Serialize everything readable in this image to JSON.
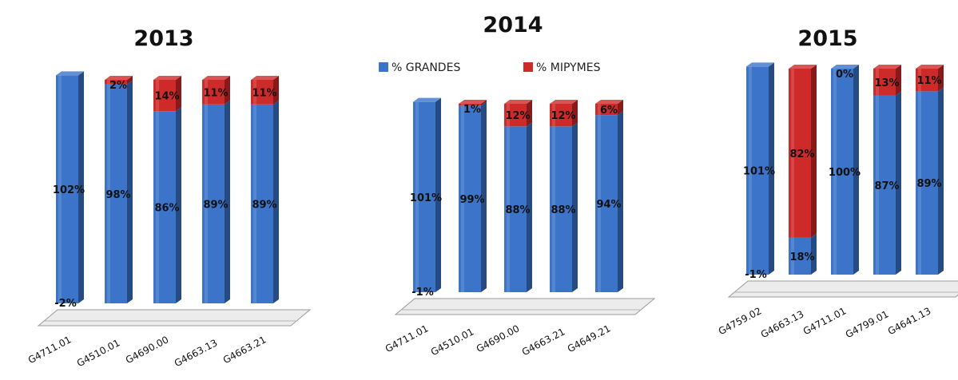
{
  "legend": [
    {
      "label": "% GRANDES",
      "color": "#3b74c9"
    },
    {
      "label": "% MIPYMES",
      "color": "#cf2a2a"
    }
  ],
  "chart_data": [
    {
      "type": "bar",
      "stacked": true,
      "title": "2013",
      "categories": [
        "G4711.01",
        "G4510.01",
        "G4690.00",
        "G4663.13",
        "G4663.21"
      ],
      "series": [
        {
          "name": "% GRANDES",
          "values": [
            102,
            98,
            86,
            89,
            89
          ]
        },
        {
          "name": "% MIPYMES",
          "values": [
            -2,
            2,
            14,
            11,
            11
          ]
        }
      ],
      "labels": [
        {
          "grandes": "102%",
          "mipymes": "-2%"
        },
        {
          "grandes": "98%",
          "mipymes": "2%"
        },
        {
          "grandes": "86%",
          "mipymes": "14%"
        },
        {
          "grandes": "89%",
          "mipymes": "11%"
        },
        {
          "grandes": "89%",
          "mipymes": "11%"
        }
      ]
    },
    {
      "type": "bar",
      "stacked": true,
      "title": "2014",
      "categories": [
        "G4711.01",
        "G4510.01",
        "G4690.00",
        "G4663.21",
        "G4649.21"
      ],
      "series": [
        {
          "name": "% GRANDES",
          "values": [
            101,
            99,
            88,
            88,
            94
          ]
        },
        {
          "name": "% MIPYMES",
          "values": [
            -1,
            1,
            12,
            12,
            6
          ]
        }
      ],
      "labels": [
        {
          "grandes": "101%",
          "mipymes": "-1%"
        },
        {
          "grandes": "99%",
          "mipymes": "1%"
        },
        {
          "grandes": "88%",
          "mipymes": "12%"
        },
        {
          "grandes": "88%",
          "mipymes": "12%"
        },
        {
          "grandes": "94%",
          "mipymes": "6%"
        }
      ]
    },
    {
      "type": "bar",
      "stacked": true,
      "title": "2015",
      "categories": [
        "G4759.02",
        "G4663.13",
        "G4711.01",
        "G4799.01",
        "G4641.13"
      ],
      "series": [
        {
          "name": "% GRANDES",
          "values": [
            101,
            18,
            100,
            87,
            89
          ]
        },
        {
          "name": "% MIPYMES",
          "values": [
            -1,
            82,
            0,
            13,
            11
          ]
        }
      ],
      "labels": [
        {
          "grandes": "101%",
          "mipymes": "-1%"
        },
        {
          "grandes": "18%",
          "mipymes": "82%"
        },
        {
          "grandes": "100%",
          "mipymes": "0%"
        },
        {
          "grandes": "87%",
          "mipymes": "13%"
        },
        {
          "grandes": "89%",
          "mipymes": "11%"
        }
      ]
    }
  ]
}
